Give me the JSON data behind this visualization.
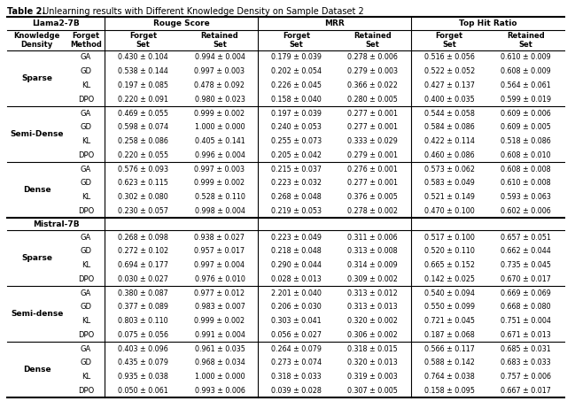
{
  "title_bold": "Table 2.",
  "title_rest": " Unlearning results with Different Knowledge Density on Sample Dataset 2",
  "col_headers_sub": [
    "Knowledge\nDensity",
    "Forget\nMethod",
    "Forget\nSet",
    "Retained\nSet",
    "Forget\nSet",
    "Retained\nSet",
    "Forget\nSet",
    "Retained\nSet"
  ],
  "llama_sections": [
    {
      "density": "Sparse",
      "rows": [
        [
          "GA",
          "0.430 ± 0.104",
          "0.994 ± 0.004",
          "0.179 ± 0.039",
          "0.278 ± 0.006",
          "0.516 ± 0.056",
          "0.610 ± 0.009"
        ],
        [
          "GD",
          "0.538 ± 0.144",
          "0.997 ± 0.003",
          "0.202 ± 0.054",
          "0.279 ± 0.003",
          "0.522 ± 0.052",
          "0.608 ± 0.009"
        ],
        [
          "KL",
          "0.197 ± 0.085",
          "0.478 ± 0.092",
          "0.226 ± 0.045",
          "0.366 ± 0.022",
          "0.427 ± 0.137",
          "0.564 ± 0.061"
        ],
        [
          "DPO",
          "0.220 ± 0.091",
          "0.980 ± 0.023",
          "0.158 ± 0.040",
          "0.280 ± 0.005",
          "0.400 ± 0.035",
          "0.599 ± 0.019"
        ]
      ]
    },
    {
      "density": "Semi-Dense",
      "rows": [
        [
          "GA",
          "0.469 ± 0.055",
          "0.999 ± 0.002",
          "0.197 ± 0.039",
          "0.277 ± 0.001",
          "0.544 ± 0.058",
          "0.609 ± 0.006"
        ],
        [
          "GD",
          "0.598 ± 0.074",
          "1.000 ± 0.000",
          "0.240 ± 0.053",
          "0.277 ± 0.001",
          "0.584 ± 0.086",
          "0.609 ± 0.005"
        ],
        [
          "KL",
          "0.258 ± 0.086",
          "0.405 ± 0.141",
          "0.255 ± 0.073",
          "0.333 ± 0.029",
          "0.422 ± 0.114",
          "0.518 ± 0.086"
        ],
        [
          "DPO",
          "0.220 ± 0.055",
          "0.996 ± 0.004",
          "0.205 ± 0.042",
          "0.279 ± 0.001",
          "0.460 ± 0.086",
          "0.608 ± 0.010"
        ]
      ]
    },
    {
      "density": "Dense",
      "rows": [
        [
          "GA",
          "0.576 ± 0.093",
          "0.997 ± 0.003",
          "0.215 ± 0.037",
          "0.276 ± 0.001",
          "0.573 ± 0.062",
          "0.608 ± 0.008"
        ],
        [
          "GD",
          "0.623 ± 0.115",
          "0.999 ± 0.002",
          "0.223 ± 0.032",
          "0.277 ± 0.001",
          "0.583 ± 0.049",
          "0.610 ± 0.008"
        ],
        [
          "KL",
          "0.302 ± 0.080",
          "0.528 ± 0.110",
          "0.268 ± 0.048",
          "0.376 ± 0.005",
          "0.521 ± 0.149",
          "0.593 ± 0.063"
        ],
        [
          "DPO",
          "0.230 ± 0.057",
          "0.998 ± 0.004",
          "0.219 ± 0.053",
          "0.278 ± 0.002",
          "0.470 ± 0.100",
          "0.602 ± 0.006"
        ]
      ]
    }
  ],
  "mistral_sections": [
    {
      "density": "Sparse",
      "rows": [
        [
          "GA",
          "0.268 ± 0.098",
          "0.938 ± 0.027",
          "0.223 ± 0.049",
          "0.311 ± 0.006",
          "0.517 ± 0.100",
          "0.657 ± 0.051"
        ],
        [
          "GD",
          "0.272 ± 0.102",
          "0.957 ± 0.017",
          "0.218 ± 0.048",
          "0.313 ± 0.008",
          "0.520 ± 0.110",
          "0.662 ± 0.044"
        ],
        [
          "KL",
          "0.694 ± 0.177",
          "0.997 ± 0.004",
          "0.290 ± 0.044",
          "0.314 ± 0.009",
          "0.665 ± 0.152",
          "0.735 ± 0.045"
        ],
        [
          "DPO",
          "0.030 ± 0.027",
          "0.976 ± 0.010",
          "0.028 ± 0.013",
          "0.309 ± 0.002",
          "0.142 ± 0.025",
          "0.670 ± 0.017"
        ]
      ]
    },
    {
      "density": "Semi-dense",
      "rows": [
        [
          "GA",
          "0.380 ± 0.087",
          "0.977 ± 0.012",
          "2.201 ± 0.040",
          "0.313 ± 0.012",
          "0.540 ± 0.094",
          "0.669 ± 0.069"
        ],
        [
          "GD",
          "0.377 ± 0.089",
          "0.983 ± 0.007",
          "0.206 ± 0.030",
          "0.313 ± 0.013",
          "0.550 ± 0.099",
          "0.668 ± 0.080"
        ],
        [
          "KL",
          "0.803 ± 0.110",
          "0.999 ± 0.002",
          "0.303 ± 0.041",
          "0.320 ± 0.002",
          "0.721 ± 0.045",
          "0.751 ± 0.004"
        ],
        [
          "DPO",
          "0.075 ± 0.056",
          "0.991 ± 0.004",
          "0.056 ± 0.027",
          "0.306 ± 0.002",
          "0.187 ± 0.068",
          "0.671 ± 0.013"
        ]
      ]
    },
    {
      "density": "Dense",
      "rows": [
        [
          "GA",
          "0.403 ± 0.096",
          "0.961 ± 0.035",
          "0.264 ± 0.079",
          "0.318 ± 0.015",
          "0.566 ± 0.117",
          "0.685 ± 0.031"
        ],
        [
          "GD",
          "0.435 ± 0.079",
          "0.968 ± 0.034",
          "0.273 ± 0.074",
          "0.320 ± 0.013",
          "0.588 ± 0.142",
          "0.683 ± 0.033"
        ],
        [
          "KL",
          "0.935 ± 0.038",
          "1.000 ± 0.000",
          "0.318 ± 0.033",
          "0.319 ± 0.003",
          "0.764 ± 0.038",
          "0.757 ± 0.006"
        ],
        [
          "DPO",
          "0.050 ± 0.061",
          "0.993 ± 0.006",
          "0.039 ± 0.028",
          "0.307 ± 0.005",
          "0.158 ± 0.095",
          "0.667 ± 0.017"
        ]
      ]
    }
  ]
}
